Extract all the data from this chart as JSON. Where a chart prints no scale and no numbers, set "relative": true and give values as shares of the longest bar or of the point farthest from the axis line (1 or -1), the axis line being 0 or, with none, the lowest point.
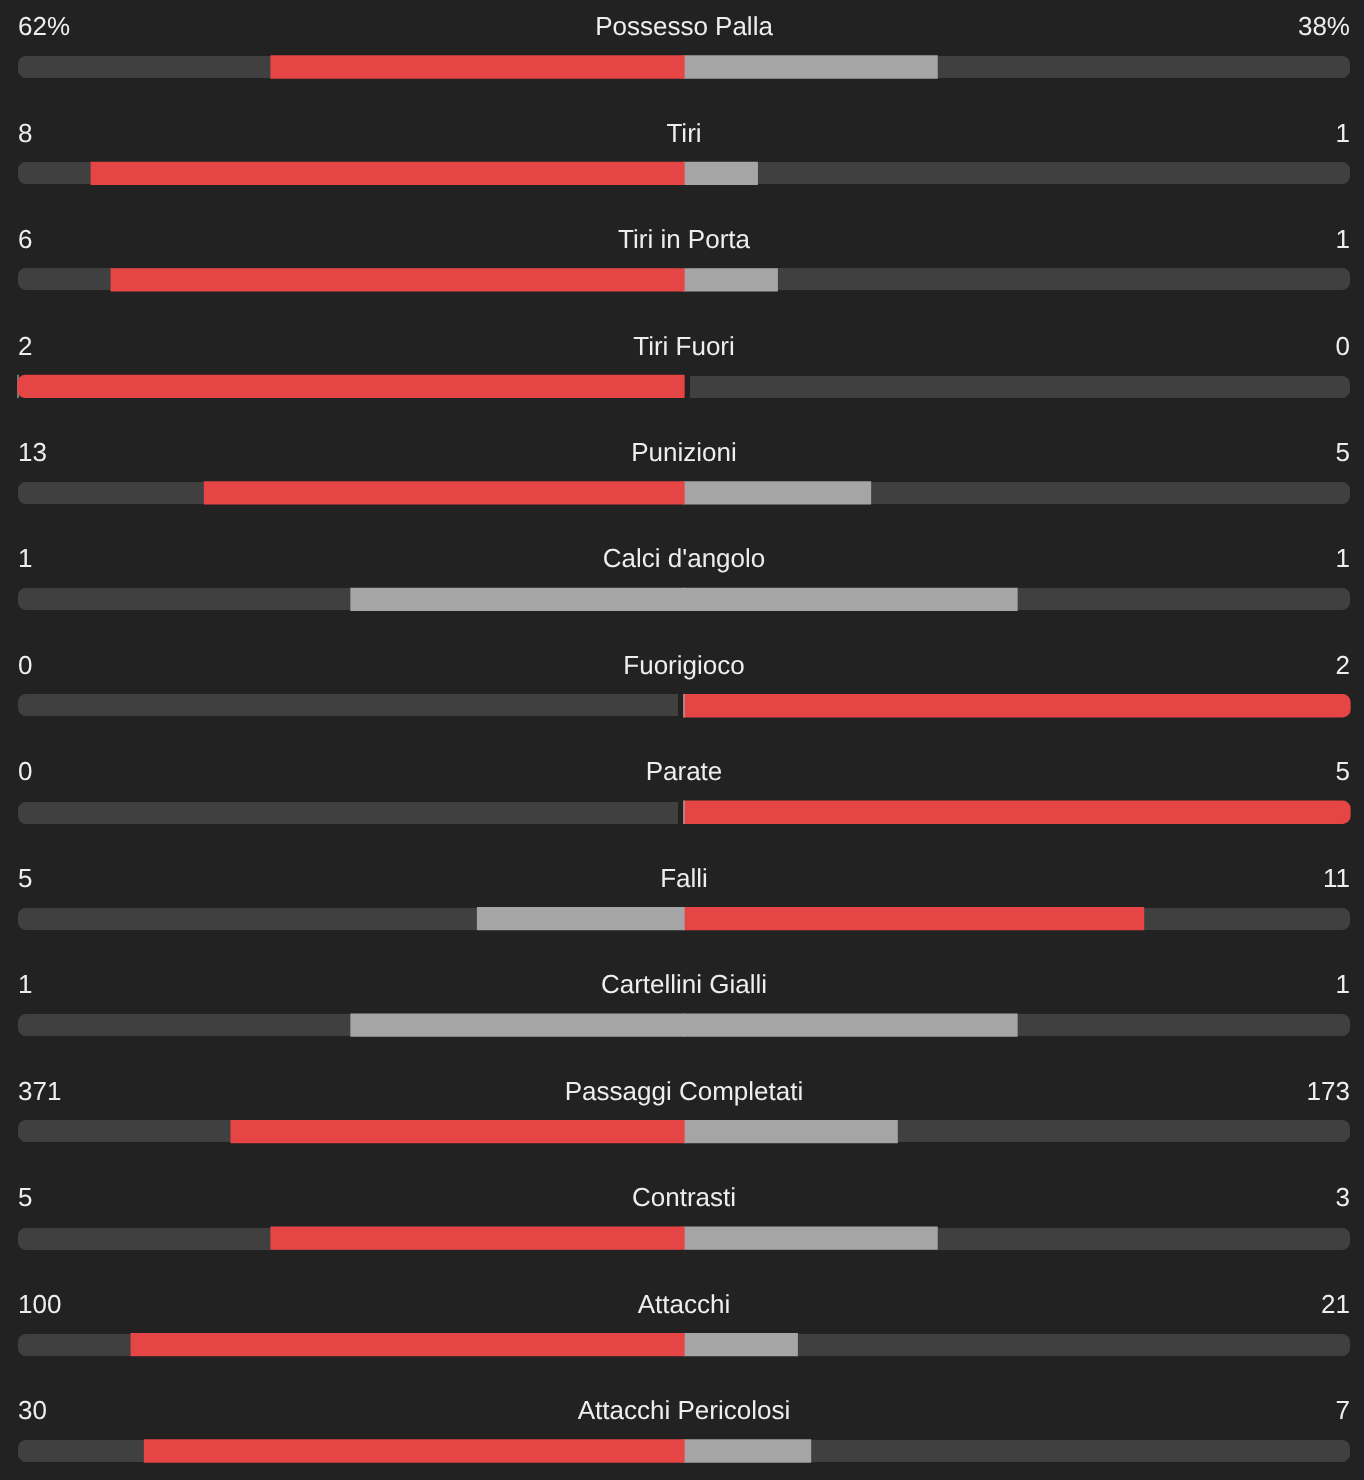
{
  "chart_data": {
    "type": "bar",
    "orientation": "horizontal",
    "relative": true,
    "stacked": true,
    "tick_labels": "y",
    "categories": [
      "Possesso Palla",
      "Tiri",
      "Tiri in Porta",
      "Tiri Fuori",
      "Punizioni",
      "Calci d'angolo",
      "Fuorigioco",
      "Parate",
      "Falli",
      "Cartellini Gialli",
      "Passaggi Completati",
      "Contrasti",
      "Attacchi",
      "Attacchi Pericolosi"
    ],
    "series": [
      {
        "values": [
          -0.62,
          -0.89,
          -0.86,
          -1,
          -0.72,
          -0.5,
          0,
          0,
          -0.31,
          -0.5,
          -0.68,
          -0.62,
          -0.83,
          -0.81
        ],
        "colors": [
          "#e64545",
          "#e64545",
          "#e64545",
          "#e64545",
          "#e64545",
          "#a5a5a5",
          "#a5a5a5",
          "#a5a5a5",
          "#a5a5a5",
          "#a5a5a5",
          "#e64545",
          "#e64545",
          "#e64545",
          "#e64545"
        ]
      },
      {
        "values": [
          0.38,
          0.11,
          0.14,
          0,
          0.28,
          0.5,
          1,
          1,
          0.69,
          0.5,
          0.32,
          0.38,
          0.17,
          0.19
        ],
        "colors": [
          "#a5a5a5",
          "#a5a5a5",
          "#a5a5a5",
          "#a5a5a5",
          "#a5a5a5",
          "#a5a5a5",
          "#e64545",
          "#e64545",
          "#e64545",
          "#a5a5a5",
          "#a5a5a5",
          "#a5a5a5",
          "#a5a5a5",
          "#a5a5a5"
        ]
      }
    ],
    "annotations": [
      "62%",
      "38%",
      "8",
      "1",
      "6",
      "1",
      "2",
      "0",
      "13",
      "5",
      "1",
      "1",
      "0",
      "2",
      "0",
      "5",
      "5",
      "11",
      "1",
      "1",
      "371",
      "173",
      "5",
      "3",
      "100",
      "21",
      "30",
      "7"
    ]
  }
}
